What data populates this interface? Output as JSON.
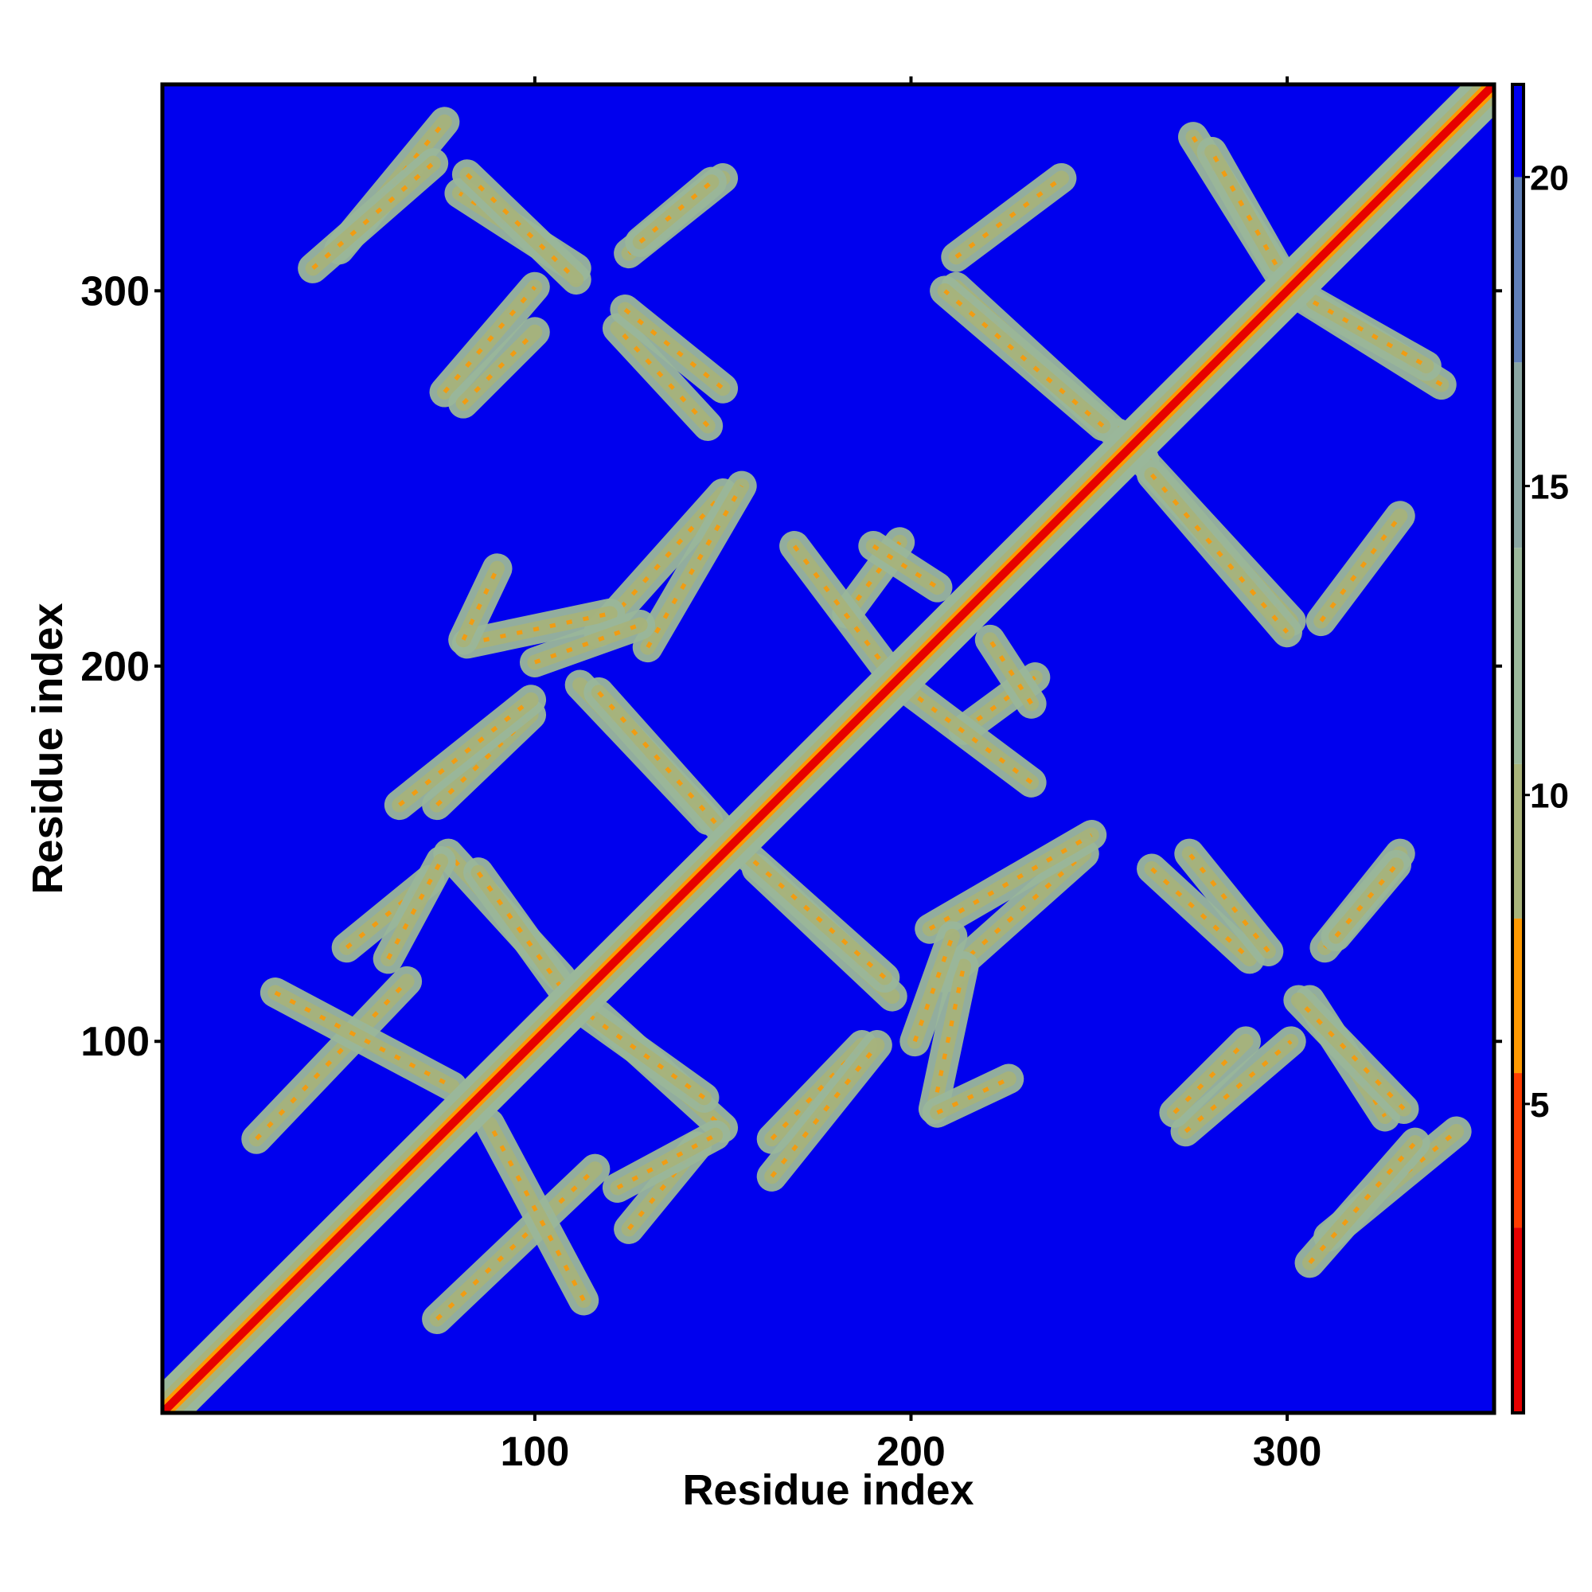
{
  "chart_data": {
    "type": "heatmap",
    "title": "",
    "xlabel": "Residue index",
    "ylabel": "Residue index",
    "xlim": [
      1,
      355
    ],
    "ylim": [
      1,
      355
    ],
    "x_ticks": [
      100,
      200,
      300
    ],
    "y_ticks": [
      100,
      200,
      300
    ],
    "colorbar": {
      "range": [
        0,
        21.5
      ],
      "ticks": [
        5,
        10,
        15,
        20
      ],
      "colors": [
        {
          "from": 0,
          "to": 3,
          "color": "#e60000"
        },
        {
          "from": 3,
          "to": 5.5,
          "color": "#ff3d00"
        },
        {
          "from": 5.5,
          "to": 8,
          "color": "#ff9900"
        },
        {
          "from": 8,
          "to": 10.5,
          "color": "#a8b37a"
        },
        {
          "from": 10.5,
          "to": 14,
          "color": "#9ab79a"
        },
        {
          "from": 14,
          "to": 17,
          "color": "#8aa6a2"
        },
        {
          "from": 17,
          "to": 20,
          "color": "#5f7fb8"
        },
        {
          "from": 20,
          "to": 21.5,
          "color": "#0000ee"
        }
      ]
    },
    "background_color": "#0000ee",
    "diagonal": {
      "from": 1,
      "to": 355,
      "core_color": "#e60000",
      "band_half_width": 6
    },
    "contact_bands": [
      {
        "x": [
          74,
          116
        ],
        "y": [
          26,
          66
        ]
      },
      {
        "x": [
          31,
          78
        ],
        "y": [
          113,
          88
        ]
      },
      {
        "x": [
          117,
          150
        ],
        "y": [
          107,
          77
        ]
      },
      {
        "x": [
          85,
          108
        ],
        "y": [
          145,
          113
        ]
      },
      {
        "x": [
          159,
          195
        ],
        "y": [
          146,
          112
        ]
      },
      {
        "x": [
          163,
          187
        ],
        "y": [
          74,
          99
        ]
      },
      {
        "x": [
          125,
          143
        ],
        "y": [
          50,
          72
        ]
      },
      {
        "x": [
          61,
          75
        ],
        "y": [
          122,
          148
        ]
      },
      {
        "x": [
          64,
          99
        ],
        "y": [
          163,
          191
        ]
      },
      {
        "x": [
          117,
          150
        ],
        "y": [
          193,
          156
        ]
      },
      {
        "x": [
          209,
          246
        ],
        "y": [
          117,
          150
        ]
      },
      {
        "x": [
          264,
          290
        ],
        "y": [
          146,
          122
        ]
      },
      {
        "x": [
          273,
          301
        ],
        "y": [
          76,
          100
        ]
      },
      {
        "x": [
          311,
          345
        ],
        "y": [
          48,
          76
        ]
      },
      {
        "x": [
          306,
          326
        ],
        "y": [
          111,
          80
        ]
      },
      {
        "x": [
          310,
          330
        ],
        "y": [
          125,
          150
        ]
      },
      {
        "x": [
          214,
          233
        ],
        "y": [
          183,
          197
        ]
      },
      {
        "x": [
          169,
          193
        ],
        "y": [
          232,
          200
        ]
      },
      {
        "x": [
          130,
          155
        ],
        "y": [
          205,
          248
        ]
      },
      {
        "x": [
          82,
          120
        ],
        "y": [
          206,
          214
        ]
      },
      {
        "x": [
          212,
          262
        ],
        "y": [
          301,
          255
        ]
      },
      {
        "x": [
          264,
          300
        ],
        "y": [
          251,
          209
        ]
      },
      {
        "x": [
          275,
          300
        ],
        "y": [
          341,
          301
        ]
      },
      {
        "x": [
          307,
          337
        ],
        "y": [
          297,
          280
        ]
      },
      {
        "x": [
          41,
          73
        ],
        "y": [
          306,
          334
        ]
      },
      {
        "x": [
          82,
          111
        ],
        "y": [
          331,
          303
        ]
      },
      {
        "x": [
          81,
          100
        ],
        "y": [
          270,
          289
        ]
      },
      {
        "x": [
          128,
          147
        ],
        "y": [
          313,
          329
        ]
      },
      {
        "x": [
          124,
          150
        ],
        "y": [
          295,
          274
        ]
      },
      {
        "x": [
          190,
          207
        ],
        "y": [
          232,
          221
        ]
      },
      {
        "x": [
          309,
          330
        ],
        "y": [
          212,
          240
        ]
      },
      {
        "x": [
          207,
          226
        ],
        "y": [
          81,
          90
        ]
      },
      {
        "x": [
          201,
          211
        ],
        "y": [
          100,
          128
        ]
      }
    ]
  }
}
